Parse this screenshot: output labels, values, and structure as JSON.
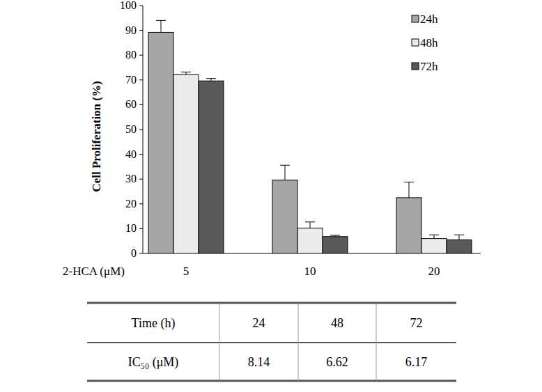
{
  "chart_data": {
    "type": "bar",
    "categories": [
      "5",
      "10",
      "20"
    ],
    "x_label": "2-HCA (μM)",
    "y_label": "Cell Proliferation (%)",
    "series": [
      {
        "name": "24h",
        "color": "#a6a6a6",
        "values": [
          89.2,
          29.6,
          22.5
        ],
        "errors": [
          4.8,
          6.0,
          6.3
        ]
      },
      {
        "name": "48h",
        "color": "#ebebeb",
        "values": [
          72.2,
          10.2,
          6.0
        ],
        "errors": [
          1.0,
          2.5,
          1.5
        ]
      },
      {
        "name": "72h",
        "color": "#595959",
        "values": [
          69.6,
          6.8,
          5.5
        ],
        "errors": [
          1.0,
          0.5,
          2.0
        ]
      }
    ],
    "ylim": [
      0,
      100
    ],
    "yticks": [
      0,
      10,
      20,
      30,
      40,
      50,
      60,
      70,
      80,
      90,
      100
    ],
    "legend": "upper right",
    "grid": false
  },
  "table": {
    "header": [
      "Time (h)",
      24,
      48,
      72
    ],
    "rows": [
      [
        "IC₅₀ (μM)",
        8.14,
        6.62,
        6.17
      ]
    ]
  }
}
